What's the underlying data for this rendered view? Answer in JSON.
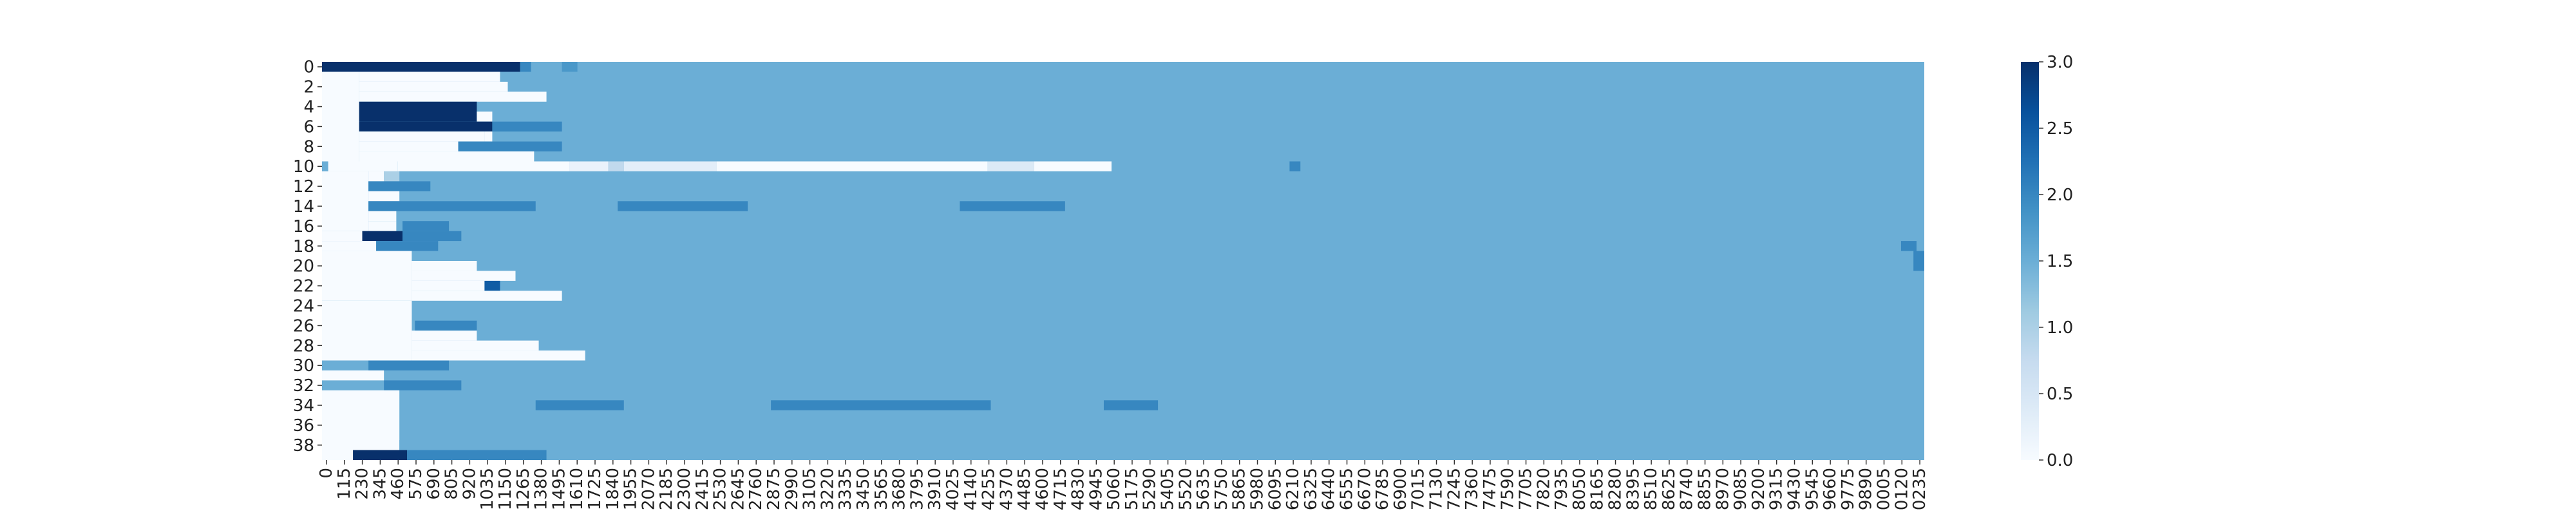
{
  "chart_data": {
    "type": "heatmap",
    "title": "",
    "xlabel": "",
    "ylabel": "",
    "y_tick_labels": [
      "0",
      "2",
      "4",
      "6",
      "8",
      "10",
      "12",
      "14",
      "16",
      "18",
      "20",
      "22",
      "24",
      "26",
      "28",
      "30",
      "32",
      "34",
      "36",
      "38"
    ],
    "x_tick_labels": [
      "0",
      "115",
      "230",
      "345",
      "460",
      "575",
      "690",
      "805",
      "920",
      "1035",
      "1150",
      "1265",
      "1380",
      "1495",
      "1610",
      "1725",
      "1840",
      "1955",
      "2070",
      "2185",
      "2300",
      "2415",
      "2530",
      "2645",
      "2760",
      "2875",
      "2990",
      "3105",
      "3220",
      "3335",
      "3450",
      "3565",
      "3680",
      "3795",
      "3910",
      "4025",
      "4140",
      "4255",
      "4370",
      "4485",
      "4600",
      "4715",
      "4830",
      "4945",
      "5060",
      "5175",
      "5290",
      "5405",
      "5520",
      "5635",
      "5750",
      "5865",
      "5980",
      "6095",
      "6210",
      "6325",
      "6440",
      "6555",
      "6670",
      "6785",
      "6900",
      "7015",
      "7130",
      "7245",
      "7360",
      "7475",
      "7590",
      "7705",
      "7820",
      "7935",
      "8050",
      "8165",
      "8280",
      "8395",
      "8510",
      "8625",
      "8740",
      "8855",
      "8970",
      "9085",
      "9200",
      "9315",
      "9430",
      "9545",
      "9660",
      "9775",
      "9890",
      "0005",
      "0120",
      "0235"
    ],
    "n_rows": 40,
    "n_cols": 10350,
    "colorbar": {
      "min": 0.0,
      "max": 3.0,
      "ticks": [
        "0.0",
        "0.5",
        "1.0",
        "1.5",
        "2.0",
        "2.5",
        "3.0"
      ]
    },
    "colormap": "Blues",
    "colors": {
      "background": "#a8cce3",
      "low": "#f7fbff",
      "mid": "#c6dbef",
      "high": "#2e7ebc",
      "max": "#08306b"
    },
    "default_value": 1.5,
    "regions": [
      {
        "rows": [
          0,
          0
        ],
        "cols": [
          0,
          1280
        ],
        "value": 3.0
      },
      {
        "rows": [
          0,
          0
        ],
        "cols": [
          1280,
          1350
        ],
        "value": 2.0
      },
      {
        "rows": [
          0,
          0
        ],
        "cols": [
          1550,
          1650
        ],
        "value": 1.8
      },
      {
        "rows": [
          1,
          9
        ],
        "cols": [
          0,
          240
        ],
        "value": 0.0
      },
      {
        "rows": [
          1,
          1
        ],
        "cols": [
          240,
          1150
        ],
        "value": 0.0
      },
      {
        "rows": [
          2,
          2
        ],
        "cols": [
          240,
          1200
        ],
        "value": 0.0
      },
      {
        "rows": [
          3,
          3
        ],
        "cols": [
          240,
          1450
        ],
        "value": 0.0
      },
      {
        "rows": [
          4,
          5
        ],
        "cols": [
          240,
          1000
        ],
        "value": 3.0
      },
      {
        "rows": [
          5,
          5
        ],
        "cols": [
          1000,
          1100
        ],
        "value": 0.0
      },
      {
        "rows": [
          6,
          6
        ],
        "cols": [
          240,
          1100
        ],
        "value": 3.0
      },
      {
        "rows": [
          6,
          6
        ],
        "cols": [
          1100,
          1550
        ],
        "value": 2.0
      },
      {
        "rows": [
          7,
          7
        ],
        "cols": [
          240,
          1050
        ],
        "value": 0.0
      },
      {
        "rows": [
          7,
          7
        ],
        "cols": [
          1050,
          1100
        ],
        "value": 0.0
      },
      {
        "rows": [
          8,
          8
        ],
        "cols": [
          240,
          880
        ],
        "value": 0.0
      },
      {
        "rows": [
          8,
          8
        ],
        "cols": [
          880,
          1550
        ],
        "value": 2.0
      },
      {
        "rows": [
          9,
          9
        ],
        "cols": [
          240,
          1370
        ],
        "value": 0.0
      },
      {
        "rows": [
          10,
          10
        ],
        "cols": [
          0,
          40
        ],
        "value": 1.5
      },
      {
        "rows": [
          10,
          10
        ],
        "cols": [
          40,
          490
        ],
        "value": 0.0
      },
      {
        "rows": [
          10,
          10
        ],
        "cols": [
          490,
          1600
        ],
        "value": 0.0
      },
      {
        "rows": [
          10,
          10
        ],
        "cols": [
          1600,
          1850
        ],
        "value": 0.2
      },
      {
        "rows": [
          10,
          10
        ],
        "cols": [
          1850,
          1950
        ],
        "value": 0.8
      },
      {
        "rows": [
          10,
          10
        ],
        "cols": [
          1950,
          2550
        ],
        "value": 0.3
      },
      {
        "rows": [
          10,
          10
        ],
        "cols": [
          2550,
          4300
        ],
        "value": 0.0
      },
      {
        "rows": [
          10,
          10
        ],
        "cols": [
          4300,
          4600
        ],
        "value": 0.4
      },
      {
        "rows": [
          10,
          10
        ],
        "cols": [
          4600,
          5100
        ],
        "value": 0.0
      },
      {
        "rows": [
          10,
          10
        ],
        "cols": [
          6250,
          6320
        ],
        "value": 2.0
      },
      {
        "rows": [
          11,
          16
        ],
        "cols": [
          0,
          300
        ],
        "value": 0.0
      },
      {
        "rows": [
          11,
          11
        ],
        "cols": [
          300,
          400
        ],
        "value": 0.0
      },
      {
        "rows": [
          11,
          11
        ],
        "cols": [
          400,
          500
        ],
        "value": 1.0
      },
      {
        "rows": [
          12,
          12
        ],
        "cols": [
          300,
          700
        ],
        "value": 2.0
      },
      {
        "rows": [
          13,
          13
        ],
        "cols": [
          300,
          500
        ],
        "value": 0.0
      },
      {
        "rows": [
          14,
          14
        ],
        "cols": [
          300,
          1380
        ],
        "value": 2.0
      },
      {
        "rows": [
          14,
          14
        ],
        "cols": [
          1910,
          2750
        ],
        "value": 2.0
      },
      {
        "rows": [
          14,
          14
        ],
        "cols": [
          4120,
          4800
        ],
        "value": 2.0
      },
      {
        "rows": [
          15,
          15
        ],
        "cols": [
          300,
          480
        ],
        "value": 0.0
      },
      {
        "rows": [
          16,
          16
        ],
        "cols": [
          300,
          480
        ],
        "value": 0.0
      },
      {
        "rows": [
          17,
          17
        ],
        "cols": [
          0,
          260
        ],
        "value": 0.0
      },
      {
        "rows": [
          17,
          17
        ],
        "cols": [
          260,
          520
        ],
        "value": 3.0
      },
      {
        "rows": [
          17,
          17
        ],
        "cols": [
          520,
          900
        ],
        "value": 2.0
      },
      {
        "rows": [
          16,
          16
        ],
        "cols": [
          520,
          820
        ],
        "value": 2.0
      },
      {
        "rows": [
          18,
          18
        ],
        "cols": [
          0,
          350
        ],
        "value": 0.0
      },
      {
        "rows": [
          18,
          18
        ],
        "cols": [
          350,
          750
        ],
        "value": 2.0
      },
      {
        "rows": [
          19,
          23
        ],
        "cols": [
          0,
          580
        ],
        "value": 0.0
      },
      {
        "rows": [
          19,
          19
        ],
        "cols": [
          580,
          1000
        ],
        "value": 1.5
      },
      {
        "rows": [
          20,
          20
        ],
        "cols": [
          580,
          1000
        ],
        "value": 0.0
      },
      {
        "rows": [
          21,
          21
        ],
        "cols": [
          580,
          1250
        ],
        "value": 0.0
      },
      {
        "rows": [
          22,
          22
        ],
        "cols": [
          580,
          1050
        ],
        "value": 0.0
      },
      {
        "rows": [
          22,
          22
        ],
        "cols": [
          1050,
          1150
        ],
        "value": 2.5
      },
      {
        "rows": [
          23,
          23
        ],
        "cols": [
          580,
          1550
        ],
        "value": 0.0
      },
      {
        "rows": [
          24,
          29
        ],
        "cols": [
          0,
          580
        ],
        "value": 0.0
      },
      {
        "rows": [
          26,
          26
        ],
        "cols": [
          600,
          1000
        ],
        "value": 2.0
      },
      {
        "rows": [
          27,
          27
        ],
        "cols": [
          580,
          1000
        ],
        "value": 0.0
      },
      {
        "rows": [
          28,
          28
        ],
        "cols": [
          580,
          1400
        ],
        "value": 0.0
      },
      {
        "rows": [
          29,
          29
        ],
        "cols": [
          580,
          1700
        ],
        "value": 0.0
      },
      {
        "rows": [
          30,
          30
        ],
        "cols": [
          300,
          820
        ],
        "value": 2.0
      },
      {
        "rows": [
          31,
          31
        ],
        "cols": [
          0,
          400
        ],
        "value": 0.0
      },
      {
        "rows": [
          32,
          32
        ],
        "cols": [
          400,
          900
        ],
        "value": 2.0
      },
      {
        "rows": [
          33,
          39
        ],
        "cols": [
          0,
          500
        ],
        "value": 0.0
      },
      {
        "rows": [
          34,
          34
        ],
        "cols": [
          1380,
          1950
        ],
        "value": 2.0
      },
      {
        "rows": [
          34,
          34
        ],
        "cols": [
          2900,
          4320
        ],
        "value": 2.0
      },
      {
        "rows": [
          34,
          34
        ],
        "cols": [
          5050,
          5400
        ],
        "value": 2.0
      },
      {
        "rows": [
          39,
          39
        ],
        "cols": [
          200,
          550
        ],
        "value": 3.0
      },
      {
        "rows": [
          39,
          39
        ],
        "cols": [
          550,
          1450
        ],
        "value": 2.0
      },
      {
        "rows": [
          38,
          38
        ],
        "cols": [
          500,
          1000
        ],
        "value": 1.5
      },
      {
        "rows": [
          18,
          18
        ],
        "cols": [
          10200,
          10300
        ],
        "value": 2.0
      },
      {
        "rows": [
          19,
          19
        ],
        "cols": [
          10280,
          10350
        ],
        "value": 2.0
      },
      {
        "rows": [
          20,
          20
        ],
        "cols": [
          10280,
          10350
        ],
        "value": 2.0
      }
    ]
  }
}
